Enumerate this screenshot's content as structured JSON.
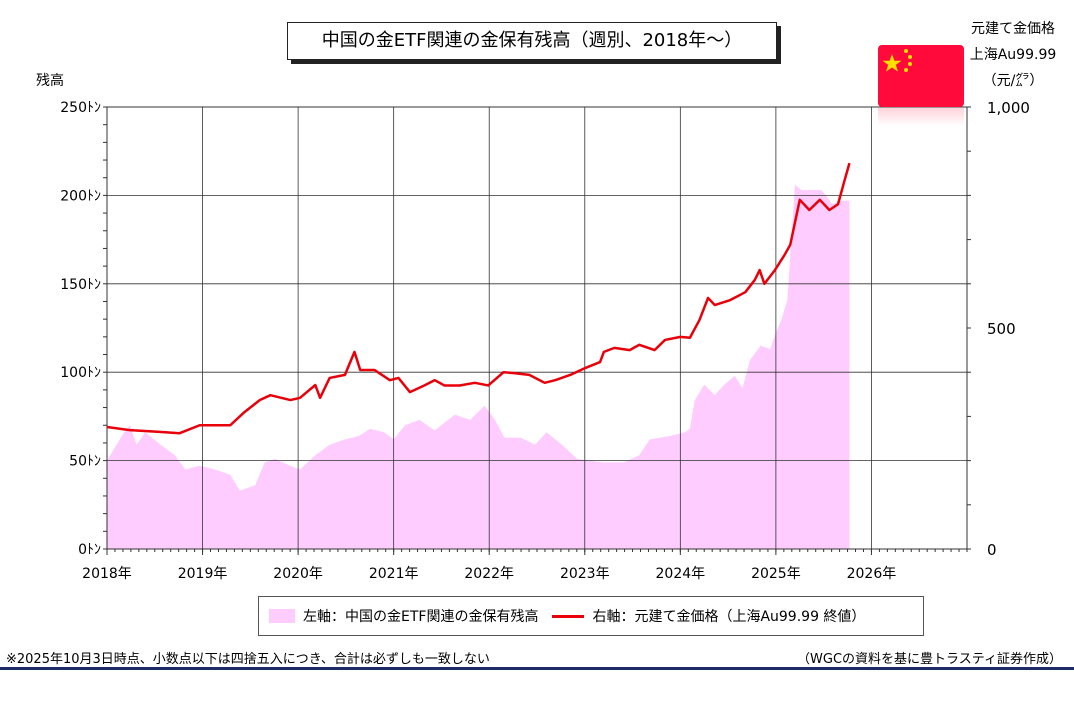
{
  "chart_data": {
    "type": "area+line",
    "title": "中国の金ETF関連の金保有残高（週別、2018年～）",
    "left_axis": {
      "label": "残高",
      "unit": "ﾄﾝ",
      "ylim": [
        0,
        250
      ],
      "ticks": [
        0,
        50,
        100,
        150,
        200,
        250
      ],
      "tick_labels": [
        "0ﾄﾝ",
        "50ﾄﾝ",
        "100ﾄﾝ",
        "150ﾄﾝ",
        "200ﾄﾝ",
        "250ﾄﾝ"
      ]
    },
    "right_axis": {
      "label_lines": [
        "元建て金価格",
        "上海Au99.99",
        "（元/㌘）"
      ],
      "ylim": [
        0,
        1000
      ],
      "ticks": [
        0,
        500,
        1000
      ],
      "tick_labels": [
        "0",
        "500",
        "1,000"
      ]
    },
    "x_axis": {
      "xlim": [
        2018,
        2027
      ],
      "ticks": [
        2018,
        2019,
        2020,
        2021,
        2022,
        2023,
        2024,
        2025,
        2026
      ],
      "tick_labels": [
        "2018年",
        "2019年",
        "2020年",
        "2021年",
        "2022年",
        "2023年",
        "2024年",
        "2025年",
        "2026年"
      ]
    },
    "grid": true,
    "series": [
      {
        "name": "左軸：中国の金ETF関連の金保有残高",
        "axis": "left",
        "kind": "area",
        "color": "#ffccff",
        "x": [
          2018.0,
          2018.19,
          2018.24,
          2018.31,
          2018.4,
          2018.56,
          2018.71,
          2018.82,
          2018.97,
          2019.13,
          2019.29,
          2019.39,
          2019.55,
          2019.65,
          2019.76,
          2019.92,
          2020.02,
          2020.18,
          2020.33,
          2020.49,
          2020.64,
          2020.75,
          2020.9,
          2021.0,
          2021.12,
          2021.27,
          2021.43,
          2021.64,
          2021.8,
          2021.95,
          2022.06,
          2022.16,
          2022.33,
          2022.48,
          2022.6,
          2022.76,
          2022.92,
          2023.04,
          2023.2,
          2023.41,
          2023.57,
          2023.68,
          2023.9,
          2024.05,
          2024.1,
          2024.15,
          2024.25,
          2024.36,
          2024.46,
          2024.57,
          2024.65,
          2024.73,
          2024.84,
          2024.94,
          2024.99,
          2025.06,
          2025.12,
          2025.2,
          2025.27,
          2025.38,
          2025.48,
          2025.59,
          2025.68,
          2025.77
        ],
        "values": [
          50,
          67,
          70,
          59,
          66,
          59,
          53,
          45,
          47,
          45,
          42,
          33,
          36,
          49,
          51,
          47,
          45,
          53,
          59,
          62,
          64,
          68,
          66,
          62,
          70,
          73,
          67,
          76,
          73,
          81,
          73,
          63,
          63,
          59,
          66,
          59,
          51,
          50,
          49,
          49,
          53,
          62,
          64,
          66,
          68,
          84,
          93,
          87,
          93,
          98,
          91,
          107,
          115,
          113,
          121,
          130,
          141,
          206,
          203,
          203,
          203,
          195,
          197,
          197
        ]
      },
      {
        "name": "右軸：元建て金価格（上海Au99.99 終値）",
        "axis": "right",
        "kind": "line",
        "color": "#e8000b",
        "x": [
          2018.0,
          2018.24,
          2018.55,
          2018.76,
          2018.97,
          2019.29,
          2019.44,
          2019.6,
          2019.71,
          2019.92,
          2020.02,
          2020.18,
          2020.23,
          2020.33,
          2020.49,
          2020.59,
          2020.65,
          2020.8,
          2020.96,
          2021.05,
          2021.17,
          2021.32,
          2021.43,
          2021.53,
          2021.69,
          2021.85,
          2021.99,
          2022.15,
          2022.26,
          2022.42,
          2022.58,
          2022.69,
          2022.85,
          2023.01,
          2023.16,
          2023.2,
          2023.31,
          2023.47,
          2023.57,
          2023.73,
          2023.84,
          2024.0,
          2024.1,
          2024.2,
          2024.29,
          2024.36,
          2024.52,
          2024.68,
          2024.78,
          2024.83,
          2024.88,
          2024.99,
          2025.09,
          2025.15,
          2025.25,
          2025.35,
          2025.46,
          2025.56,
          2025.65,
          2025.72,
          2025.77
        ],
        "values": [
          276,
          269,
          265,
          262,
          280,
          280,
          310,
          337,
          348,
          337,
          342,
          371,
          342,
          387,
          394,
          446,
          405,
          405,
          382,
          387,
          355,
          370,
          382,
          370,
          370,
          376,
          370,
          400,
          398,
          394,
          376,
          382,
          394,
          410,
          423,
          446,
          455,
          450,
          462,
          450,
          473,
          480,
          478,
          518,
          568,
          552,
          563,
          581,
          609,
          631,
          600,
          631,
          665,
          688,
          790,
          767,
          790,
          767,
          780,
          835,
          873
        ]
      }
    ],
    "legend": {
      "placement": "bottom",
      "entries": [
        "左軸：中国の金ETF関連の金保有残高",
        "右軸：元建て金価格（上海Au99.99 終値）"
      ]
    },
    "footnote": "※2025年10月3日時点、小数点以下は四捨五入につき、合計は必ずしも一致しない",
    "source": "（WGCの資料を基に豊トラスティ証券作成）"
  }
}
